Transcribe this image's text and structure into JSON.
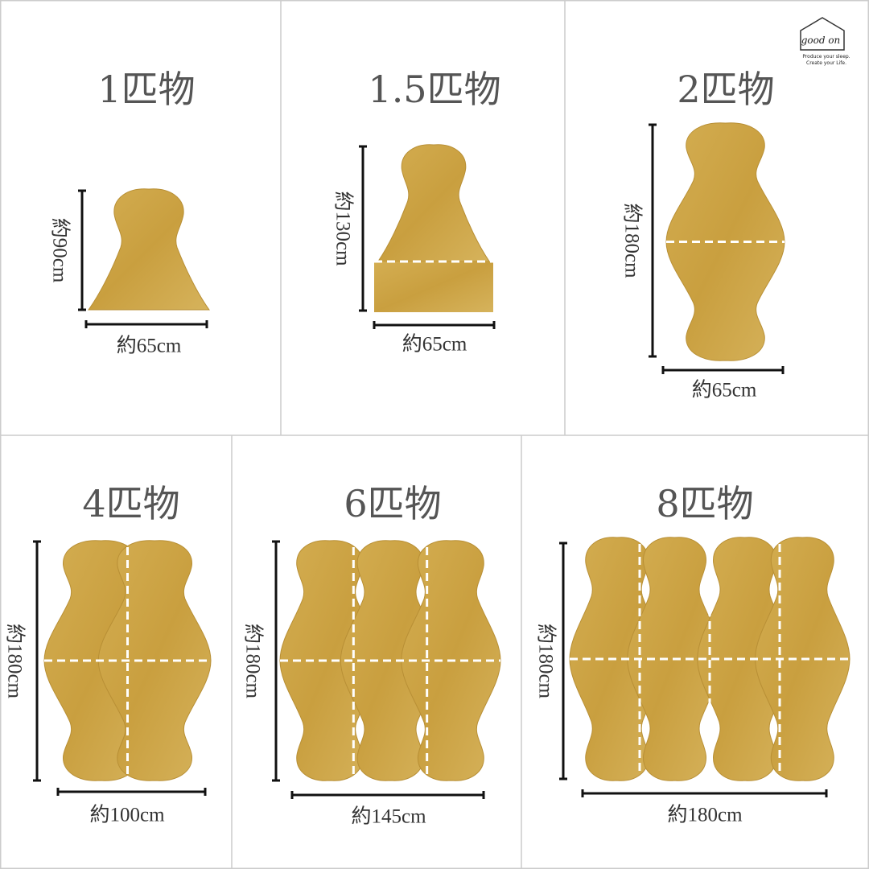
{
  "logo": {
    "brand": "good on",
    "tagline": [
      "Produce your sleep.",
      "Create your Life."
    ]
  },
  "panels": [
    {
      "title": "1匹物",
      "height": "約90cm",
      "width": "約65cm"
    },
    {
      "title": "1.5匹物",
      "height": "約130cm",
      "width": "約65cm"
    },
    {
      "title": "2匹物",
      "height": "約180cm",
      "width": "約65cm"
    },
    {
      "title": "4匹物",
      "height": "約180cm",
      "width": "約100cm"
    },
    {
      "title": "6匹物",
      "height": "約180cm",
      "width": "約145cm"
    },
    {
      "title": "8匹物",
      "height": "約180cm",
      "width": "約180cm"
    }
  ]
}
